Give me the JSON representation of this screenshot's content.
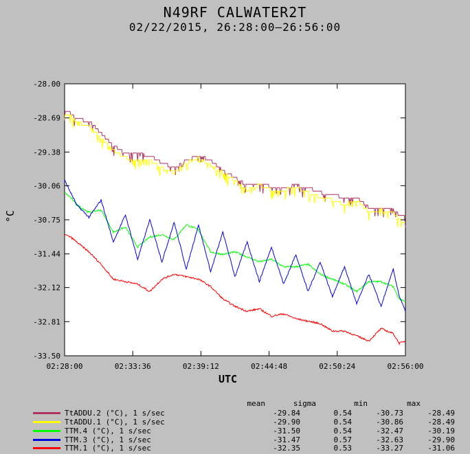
{
  "header": {
    "title": "N49RF CALWATER2T",
    "subtitle": "02/22/2015, 26:28:00–26:56:00"
  },
  "chart_data": {
    "type": "line",
    "xlabel": "UTC",
    "ylabel": "°C",
    "xlim": [
      "02:28:00",
      "02:56:00"
    ],
    "ylim": [
      -33.5,
      -28.0
    ],
    "x_ticks": [
      "02:28:00",
      "02:33:36",
      "02:39:12",
      "02:44:48",
      "02:50:24",
      "02:56:00"
    ],
    "y_ticks": [
      "-28.00",
      "-28.69",
      "-29.38",
      "-30.06",
      "-30.75",
      "-31.44",
      "-32.12",
      "-32.81",
      "-33.50"
    ],
    "grid": false,
    "legend_columns": [
      "mean",
      "sigma",
      "min",
      "max"
    ],
    "series": [
      {
        "name": "TtADDU.2 (°C), 1 s/sec",
        "color": "#b03060",
        "stats": [
          "-29.84",
          "0.54",
          "-30.73",
          "-28.49"
        ],
        "t_min": [
          0,
          0.5,
          1,
          2,
          3,
          4,
          5,
          6,
          7,
          8,
          9,
          10,
          11,
          12,
          13,
          14,
          15,
          16,
          17,
          18,
          19,
          20,
          21,
          22,
          23,
          24,
          25,
          26,
          27,
          27.5,
          28
        ],
        "values": [
          -28.55,
          -28.6,
          -28.72,
          -28.75,
          -29.0,
          -29.25,
          -29.4,
          -29.42,
          -29.45,
          -29.6,
          -29.7,
          -29.55,
          -29.45,
          -29.55,
          -29.75,
          -29.9,
          -30.05,
          -30.02,
          -30.08,
          -30.1,
          -30.05,
          -30.1,
          -30.2,
          -30.25,
          -30.3,
          -30.3,
          -30.5,
          -30.5,
          -30.55,
          -30.65,
          -30.7
        ]
      },
      {
        "name": "TtADDU.1 (°C), 1 s/sec",
        "color": "#ffff00",
        "stats": [
          "-29.90",
          "0.54",
          "-30.86",
          "-28.49"
        ],
        "t_min": [
          0,
          0.5,
          1,
          2,
          3,
          4,
          5,
          6,
          7,
          8,
          9,
          10,
          11,
          12,
          13,
          14,
          15,
          16,
          17,
          18,
          19,
          20,
          21,
          22,
          23,
          24,
          25,
          26,
          27,
          27.5,
          28
        ],
        "values": [
          -28.6,
          -28.65,
          -28.78,
          -28.85,
          -29.1,
          -29.35,
          -29.5,
          -29.55,
          -29.55,
          -29.7,
          -29.8,
          -29.6,
          -29.5,
          -29.65,
          -29.8,
          -29.95,
          -30.15,
          -30.05,
          -30.15,
          -30.15,
          -30.1,
          -30.2,
          -30.3,
          -30.35,
          -30.45,
          -30.35,
          -30.6,
          -30.55,
          -30.6,
          -30.75,
          -30.8
        ]
      },
      {
        "name": "TTM.4 (°C), 1 s/sec",
        "color": "#00ff00",
        "stats": [
          "-31.50",
          "0.54",
          "-32.47",
          "-30.19"
        ],
        "t_min": [
          0,
          0.5,
          1,
          2,
          3,
          4,
          5,
          6,
          7,
          8,
          9,
          10,
          11,
          12,
          13,
          14,
          15,
          16,
          17,
          18,
          19,
          20,
          21,
          22,
          23,
          24,
          25,
          26,
          27,
          27.5,
          28
        ],
        "values": [
          -30.2,
          -30.3,
          -30.45,
          -30.6,
          -30.55,
          -31.0,
          -30.9,
          -31.3,
          -31.1,
          -31.05,
          -31.15,
          -30.85,
          -30.95,
          -31.4,
          -31.45,
          -31.4,
          -31.5,
          -31.6,
          -31.55,
          -31.7,
          -31.7,
          -31.65,
          -31.85,
          -31.95,
          -32.05,
          -32.2,
          -32.0,
          -32.0,
          -32.1,
          -32.35,
          -32.4
        ]
      },
      {
        "name": "TTM.3 (°C), 1 s/sec",
        "color": "#0000e0",
        "stats": [
          "-31.47",
          "0.57",
          "-32.63",
          "-29.90"
        ],
        "t_min": [
          0,
          0.5,
          1,
          2,
          3,
          4,
          5,
          6,
          7,
          8,
          9,
          10,
          11,
          12,
          13,
          14,
          15,
          16,
          17,
          18,
          19,
          20,
          21,
          22,
          23,
          24,
          25,
          26,
          27,
          27.5,
          28
        ],
        "values": [
          -29.95,
          -30.2,
          -30.45,
          -30.7,
          -30.35,
          -31.2,
          -30.65,
          -31.55,
          -30.75,
          -31.6,
          -30.8,
          -31.75,
          -30.85,
          -31.8,
          -31.0,
          -31.9,
          -31.2,
          -32.0,
          -31.3,
          -32.05,
          -31.45,
          -32.2,
          -31.6,
          -32.3,
          -31.7,
          -32.45,
          -31.85,
          -32.5,
          -31.75,
          -32.3,
          -32.6
        ]
      },
      {
        "name": "TTM.1 (°C), 1 s/sec",
        "color": "#ff0000",
        "stats": [
          "-32.35",
          "0.53",
          "-33.27",
          "-31.06"
        ],
        "t_min": [
          0,
          0.5,
          1,
          2,
          3,
          4,
          5,
          6,
          7,
          8,
          9,
          10,
          11,
          12,
          13,
          14,
          15,
          16,
          17,
          18,
          19,
          20,
          21,
          22,
          23,
          24,
          25,
          26,
          27,
          27.5,
          28
        ],
        "values": [
          -31.05,
          -31.1,
          -31.2,
          -31.4,
          -31.65,
          -31.95,
          -32.0,
          -32.05,
          -32.2,
          -31.95,
          -31.85,
          -31.9,
          -31.95,
          -32.1,
          -32.35,
          -32.5,
          -32.6,
          -32.55,
          -32.7,
          -32.65,
          -32.75,
          -32.8,
          -32.85,
          -33.0,
          -33.0,
          -33.1,
          -33.2,
          -32.95,
          -33.05,
          -33.25,
          -33.2
        ]
      }
    ]
  }
}
